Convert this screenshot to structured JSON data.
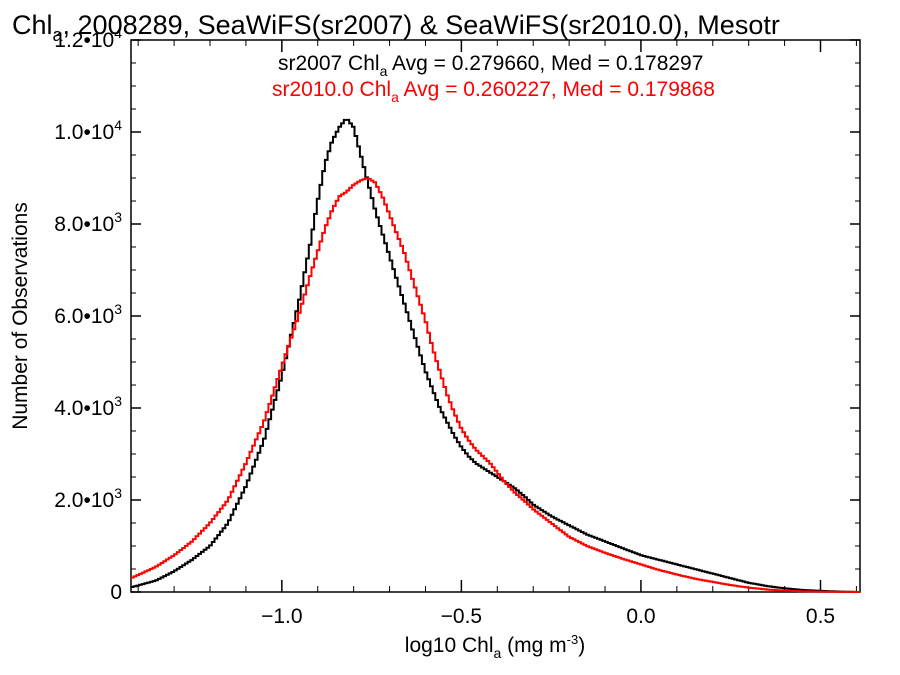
{
  "chart_data": {
    "type": "line",
    "title_parts": {
      "chl": "Chl",
      "sub": "a",
      "rest": ", 2008289, SeaWiFS(sr2007) & SeaWiFS(sr2010.0), Mesotr"
    },
    "xlabel": {
      "pre": "log10 Chl",
      "sub": "a",
      "mid": " (mg m",
      "sup": "-3",
      "post": ")"
    },
    "ylabel": "Number of Observations",
    "xlim": [
      -1.42,
      0.61
    ],
    "ylim": [
      0,
      12000
    ],
    "x_ticks": [
      {
        "value": -1.0,
        "label": "−1.0"
      },
      {
        "value": -0.5,
        "label": "−0.5"
      },
      {
        "value": 0.0,
        "label": "0.0"
      },
      {
        "value": 0.5,
        "label": "0.5"
      }
    ],
    "y_ticks": [
      {
        "value": 0,
        "mant": "0",
        "exp": ""
      },
      {
        "value": 2000,
        "mant": "2.0•10",
        "exp": "3"
      },
      {
        "value": 4000,
        "mant": "4.0•10",
        "exp": "3"
      },
      {
        "value": 6000,
        "mant": "6.0•10",
        "exp": "3"
      },
      {
        "value": 8000,
        "mant": "8.0•10",
        "exp": "3"
      },
      {
        "value": 10000,
        "mant": "1.0•10",
        "exp": "4"
      },
      {
        "value": 12000,
        "mant": "1.2•10",
        "exp": "4"
      }
    ],
    "legend_lines": [
      {
        "pre": "sr2007 Chl",
        "sub": "a",
        "post": " Avg = 0.279660, Med = 0.178297",
        "color": "#000000"
      },
      {
        "pre": "sr2010.0 Chl",
        "sub": "a",
        "post": " Avg = 0.260227, Med = 0.179868",
        "color": "#ff0000"
      }
    ],
    "legend_placement": "top-right",
    "grid": false,
    "series": [
      {
        "color": "#000000",
        "x": [
          -1.42,
          -1.35,
          -1.3,
          -1.25,
          -1.2,
          -1.15,
          -1.1,
          -1.05,
          -1.0,
          -0.95,
          -0.92,
          -0.9,
          -0.88,
          -0.86,
          -0.84,
          -0.82,
          -0.8,
          -0.78,
          -0.76,
          -0.74,
          -0.72,
          -0.7,
          -0.68,
          -0.66,
          -0.64,
          -0.62,
          -0.6,
          -0.58,
          -0.56,
          -0.54,
          -0.52,
          -0.5,
          -0.48,
          -0.46,
          -0.44,
          -0.42,
          -0.4,
          -0.38,
          -0.35,
          -0.32,
          -0.3,
          -0.25,
          -0.2,
          -0.15,
          -0.1,
          -0.05,
          0.0,
          0.05,
          0.1,
          0.15,
          0.2,
          0.25,
          0.3,
          0.35,
          0.4,
          0.45,
          0.5,
          0.55,
          0.61
        ],
        "y": [
          100,
          250,
          450,
          700,
          1000,
          1500,
          2300,
          3300,
          4700,
          6400,
          7600,
          8500,
          9300,
          9800,
          10100,
          10300,
          10100,
          9500,
          8900,
          8300,
          7800,
          7300,
          6800,
          6300,
          5800,
          5300,
          4800,
          4400,
          4000,
          3700,
          3400,
          3150,
          2950,
          2800,
          2700,
          2600,
          2500,
          2400,
          2250,
          2050,
          1900,
          1650,
          1450,
          1250,
          1100,
          950,
          800,
          700,
          600,
          500,
          400,
          300,
          200,
          130,
          80,
          45,
          25,
          10,
          0
        ]
      },
      {
        "color": "#ff0000",
        "x": [
          -1.42,
          -1.35,
          -1.3,
          -1.25,
          -1.2,
          -1.15,
          -1.1,
          -1.05,
          -1.0,
          -0.95,
          -0.92,
          -0.9,
          -0.88,
          -0.86,
          -0.84,
          -0.82,
          -0.8,
          -0.78,
          -0.76,
          -0.74,
          -0.72,
          -0.7,
          -0.68,
          -0.66,
          -0.64,
          -0.62,
          -0.6,
          -0.58,
          -0.56,
          -0.54,
          -0.52,
          -0.5,
          -0.48,
          -0.46,
          -0.44,
          -0.42,
          -0.4,
          -0.38,
          -0.35,
          -0.32,
          -0.3,
          -0.25,
          -0.2,
          -0.15,
          -0.1,
          -0.05,
          0.0,
          0.05,
          0.1,
          0.15,
          0.2,
          0.25,
          0.3,
          0.35,
          0.4,
          0.45,
          0.5,
          0.55,
          0.61
        ],
        "y": [
          300,
          550,
          800,
          1100,
          1500,
          2000,
          2800,
          3700,
          4900,
          6100,
          6900,
          7400,
          7900,
          8300,
          8600,
          8700,
          8850,
          8950,
          9000,
          8900,
          8600,
          8200,
          7800,
          7400,
          6900,
          6400,
          5900,
          5300,
          4800,
          4300,
          3900,
          3550,
          3300,
          3100,
          2950,
          2800,
          2600,
          2400,
          2150,
          1950,
          1800,
          1500,
          1200,
          1000,
          850,
          720,
          600,
          480,
          380,
          290,
          220,
          150,
          95,
          55,
          30,
          15,
          8,
          3,
          0
        ]
      }
    ]
  }
}
